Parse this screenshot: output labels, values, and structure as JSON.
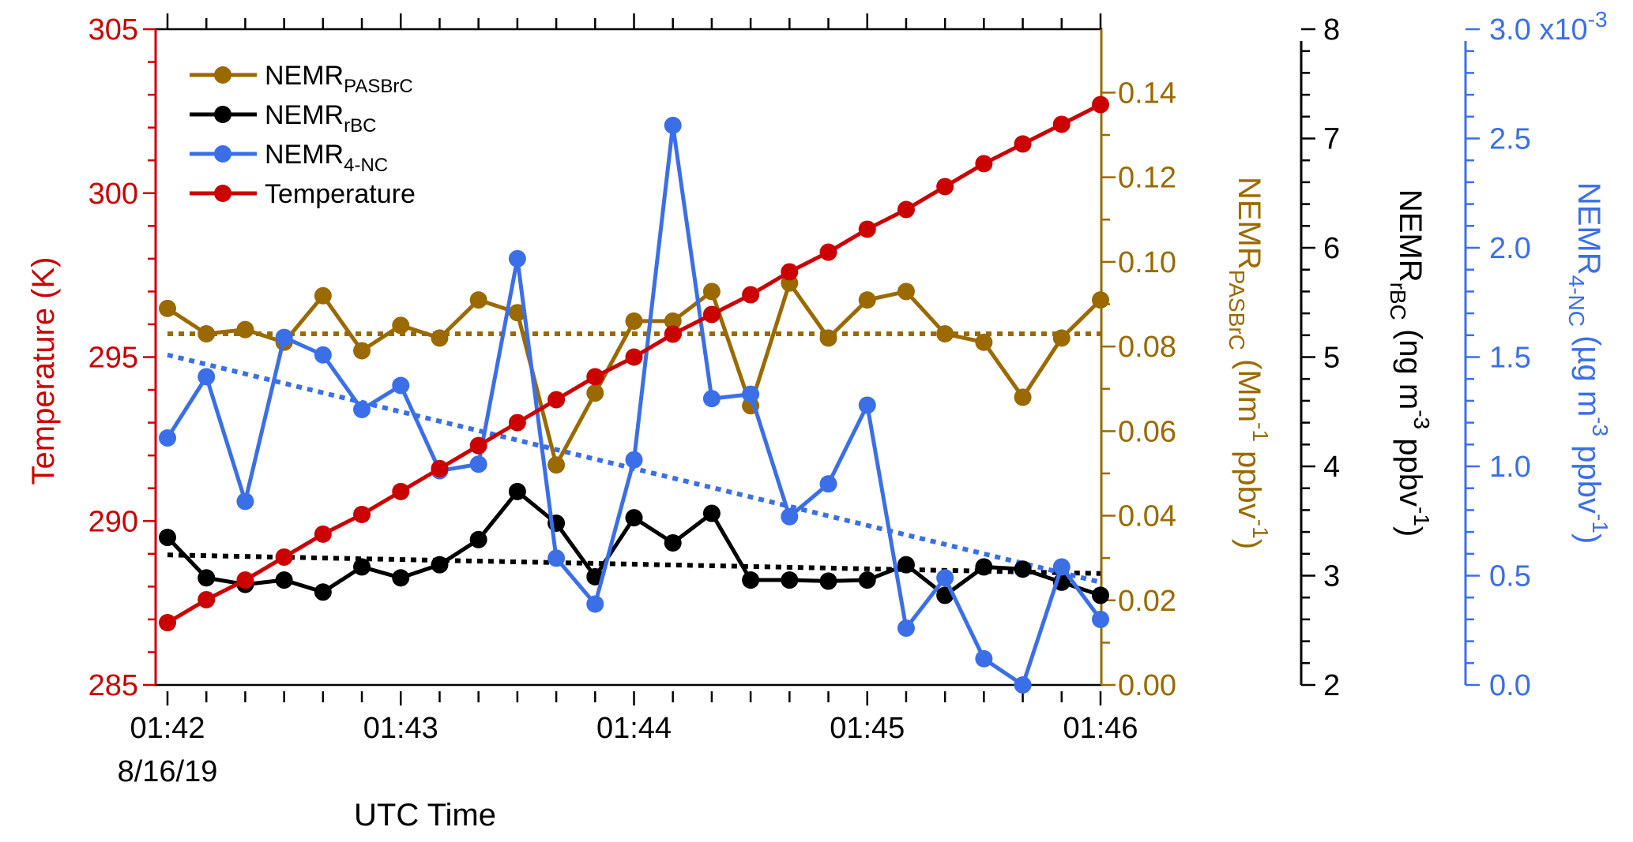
{
  "chart_data": {
    "type": "line",
    "xlabel": "UTC Time",
    "x_ticks": [
      "01:42",
      "01:43",
      "01:44",
      "01:45",
      "01:46"
    ],
    "x_date_label": "8/16/19",
    "x_range_minutes": [
      0,
      4
    ],
    "x_minutes": [
      0,
      0.1667,
      0.3333,
      0.5,
      0.6667,
      0.8333,
      1.0,
      1.1667,
      1.3333,
      1.5,
      1.6667,
      1.8333,
      2.0,
      2.1667,
      2.3333,
      2.5,
      2.6667,
      2.8333,
      3.0,
      3.1667,
      3.3333,
      3.5,
      3.6667,
      3.8333,
      4.0
    ],
    "grid": false,
    "legend_position": "top-left",
    "axes": {
      "temperature": {
        "label": "Temperature (K)",
        "color": "#cc0000",
        "side": "left",
        "range": [
          285,
          305
        ],
        "ticks": [
          285,
          290,
          295,
          300,
          305
        ]
      },
      "pasbrc": {
        "label_main": "NEMR",
        "label_sub": "PASBrC",
        "label_units_pre": " (Mm",
        "label_sup": "-1",
        "label_units_post": " ppbv",
        "label_sup2": "-1",
        "label_end": ")",
        "color": "#9a6a00",
        "side": "right",
        "range": [
          0,
          0.155
        ],
        "ticks": [
          "0.00",
          "0.02",
          "0.04",
          "0.06",
          "0.08",
          "0.10",
          "0.12",
          "0.14"
        ]
      },
      "rbc": {
        "label_main": "NEMR",
        "label_sub": "rBC",
        "label_units_pre": " (ng m",
        "label_sup": "-3",
        "label_units_post": " ppbv",
        "label_sup2": "-1",
        "label_end": ")",
        "color": "#000000",
        "side": "right",
        "range": [
          2,
          8
        ],
        "ticks": [
          "2",
          "3",
          "4",
          "5",
          "6",
          "7",
          "8"
        ]
      },
      "nc": {
        "label_main": "NEMR",
        "label_sub": "4-NC",
        "label_units_pre": " (µg m",
        "label_sup": "-3",
        "label_units_post": " ppbv",
        "label_sup2": "-1",
        "label_end": ")",
        "color": "#3b6fe8",
        "side": "right",
        "range": [
          0,
          3.0
        ],
        "ticks": [
          "0.0",
          "0.5",
          "1.0",
          "1.5",
          "2.0",
          "2.5",
          "3.0"
        ],
        "tick_suffix_top": " x10",
        "tick_suffix_exp": "-3"
      }
    },
    "series": [
      {
        "name": "NEMR",
        "name_sub": "PASBrC",
        "axis": "pasbrc",
        "color": "#9a6a00",
        "values": [
          0.089,
          0.083,
          0.084,
          0.081,
          0.092,
          0.079,
          0.085,
          0.082,
          0.091,
          0.088,
          0.052,
          0.069,
          0.086,
          0.086,
          0.093,
          0.066,
          0.095,
          0.082,
          0.091,
          0.093,
          0.083,
          0.081,
          0.068,
          0.082,
          0.091
        ],
        "trend": [
          0.083,
          0.083
        ]
      },
      {
        "name": "NEMR",
        "name_sub": "rBC",
        "axis": "rbc",
        "color": "#000000",
        "values": [
          3.35,
          2.98,
          2.92,
          2.96,
          2.85,
          3.08,
          2.98,
          3.1,
          3.33,
          3.77,
          3.48,
          2.99,
          3.53,
          3.3,
          3.57,
          2.96,
          2.96,
          2.95,
          2.96,
          3.1,
          2.82,
          3.08,
          3.06,
          2.94,
          2.82
        ],
        "trend": [
          3.19,
          3.02
        ]
      },
      {
        "name": "NEMR",
        "name_sub": "4-NC",
        "axis": "nc",
        "color": "#3b6fe8",
        "values": [
          1.13,
          1.41,
          0.84,
          1.59,
          1.51,
          1.26,
          1.37,
          0.98,
          1.01,
          1.95,
          0.58,
          0.37,
          1.03,
          2.56,
          1.31,
          1.33,
          0.77,
          0.92,
          1.28,
          0.26,
          0.49,
          0.12,
          0.0,
          0.54,
          0.3
        ],
        "trend": [
          1.51,
          0.47
        ]
      },
      {
        "name": "Temperature",
        "axis": "temperature",
        "color": "#cc0000",
        "values": [
          286.9,
          287.6,
          288.2,
          288.9,
          289.6,
          290.2,
          290.9,
          291.6,
          292.3,
          293.0,
          293.7,
          294.4,
          295.0,
          295.7,
          296.3,
          296.9,
          297.6,
          298.2,
          298.9,
          299.5,
          300.2,
          300.9,
          301.5,
          302.1,
          302.7
        ]
      }
    ]
  }
}
